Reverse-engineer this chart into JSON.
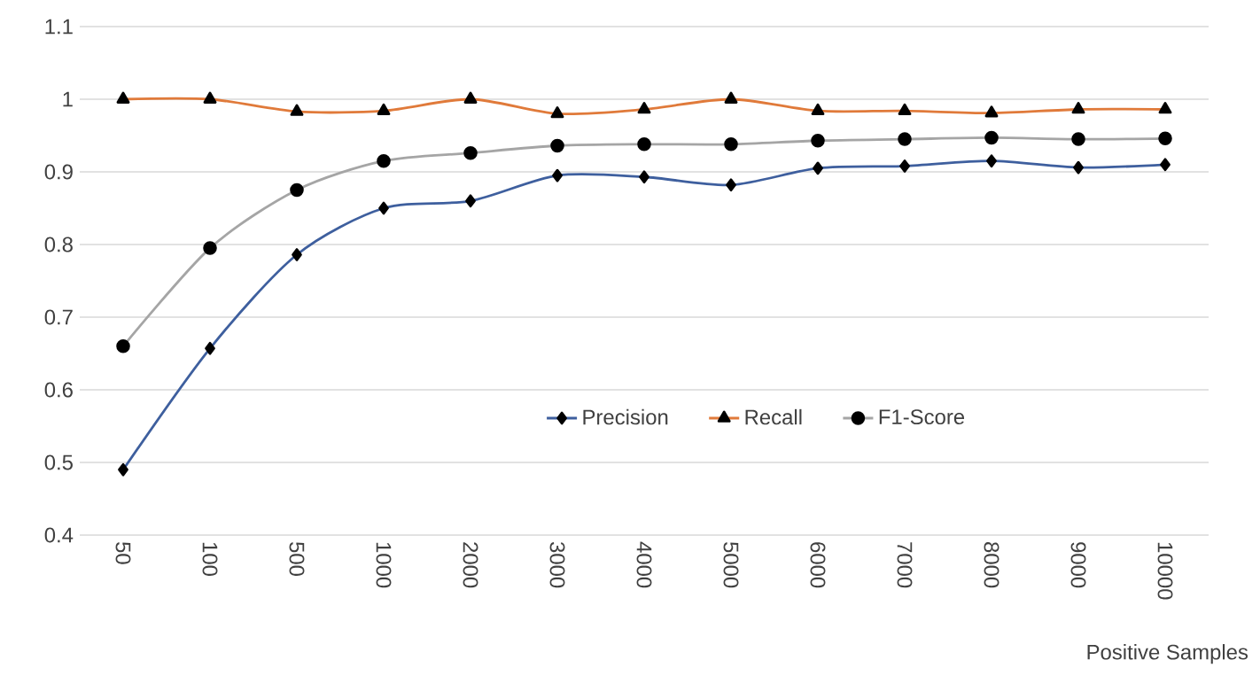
{
  "chart_data": {
    "type": "line",
    "xlabel": "Positive Samples",
    "categories": [
      "50",
      "100",
      "500",
      "1000",
      "2000",
      "3000",
      "4000",
      "5000",
      "6000",
      "7000",
      "8000",
      "9000",
      "10000"
    ],
    "series": [
      {
        "name": "Precision",
        "color": "#3e5f9e",
        "marker": "diamond",
        "values": [
          0.49,
          0.657,
          0.786,
          0.85,
          0.86,
          0.895,
          0.893,
          0.882,
          0.905,
          0.908,
          0.915,
          0.906,
          0.91
        ]
      },
      {
        "name": "Recall",
        "color": "#e07a3a",
        "marker": "triangle",
        "values": [
          1.0,
          1.0,
          0.983,
          0.984,
          1.0,
          0.98,
          0.986,
          1.0,
          0.984,
          0.984,
          0.981,
          0.986,
          0.986
        ]
      },
      {
        "name": "F1-Score",
        "color": "#a5a5a5",
        "marker": "circle",
        "values": [
          0.66,
          0.795,
          0.875,
          0.915,
          0.926,
          0.936,
          0.938,
          0.938,
          0.943,
          0.945,
          0.947,
          0.945,
          0.946
        ]
      }
    ],
    "ylim": [
      0.4,
      1.1
    ],
    "yticks": [
      0.4,
      0.5,
      0.6,
      0.7,
      0.8,
      0.9,
      1,
      1.1
    ],
    "grid": "y",
    "legend": "center",
    "line_style": "solid"
  }
}
